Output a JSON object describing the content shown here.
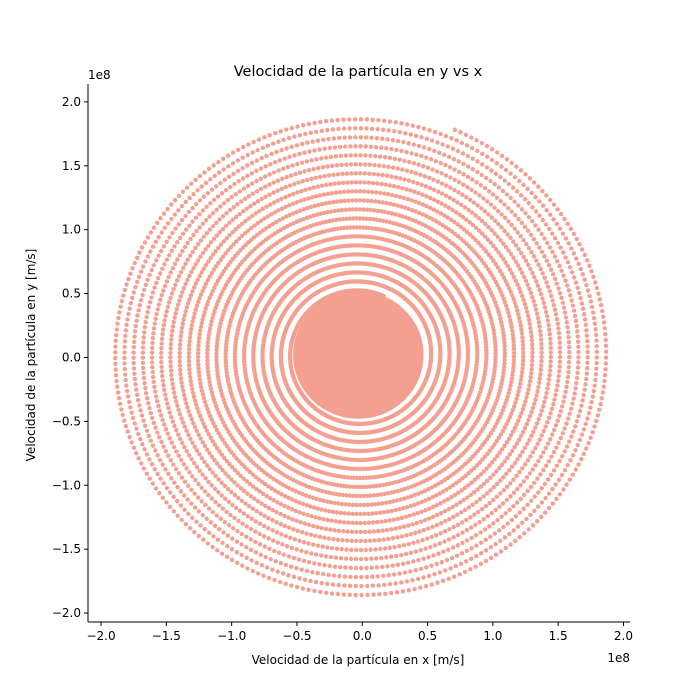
{
  "chart_data": {
    "type": "scatter",
    "title": "Velocidad de la partícula en y vs x",
    "xlabel": "Velocidad de la partícula en x [m/s]",
    "ylabel": "Velocidad de la partícula en y [m/s]",
    "x_offset_label": "1e8",
    "y_offset_label": "1e8",
    "xlim": [
      -210000000.0,
      205000000.0
    ],
    "ylim": [
      -207000000.0,
      214000000.0
    ],
    "x_ticks": [
      -200000000.0,
      -150000000.0,
      -100000000.0,
      -50000000.0,
      0.0,
      50000000.0,
      100000000.0,
      150000000.0,
      200000000.0
    ],
    "x_tick_labels": [
      "−2.0",
      "−1.5",
      "−1.0",
      "−0.5",
      "0.0",
      "0.5",
      "1.0",
      "1.5",
      "2.0"
    ],
    "y_ticks": [
      -200000000.0,
      -150000000.0,
      -100000000.0,
      -50000000.0,
      0.0,
      50000000.0,
      100000000.0,
      150000000.0,
      200000000.0
    ],
    "y_tick_labels": [
      "−2.0",
      "−1.5",
      "−1.0",
      "−0.5",
      "0.0",
      "0.5",
      "1.0",
      "1.5",
      "2.0"
    ],
    "grid": false,
    "marker_color": "#f4a090",
    "series": [
      {
        "spiral": {
          "center": [
            -3000000.0,
            2000000.0
          ],
          "r_inner": 50000000.0,
          "r_outer": 191000000.0,
          "turns": 20,
          "end_point": [
            73000000.0,
            183000000.0
          ]
        }
      }
    ]
  }
}
